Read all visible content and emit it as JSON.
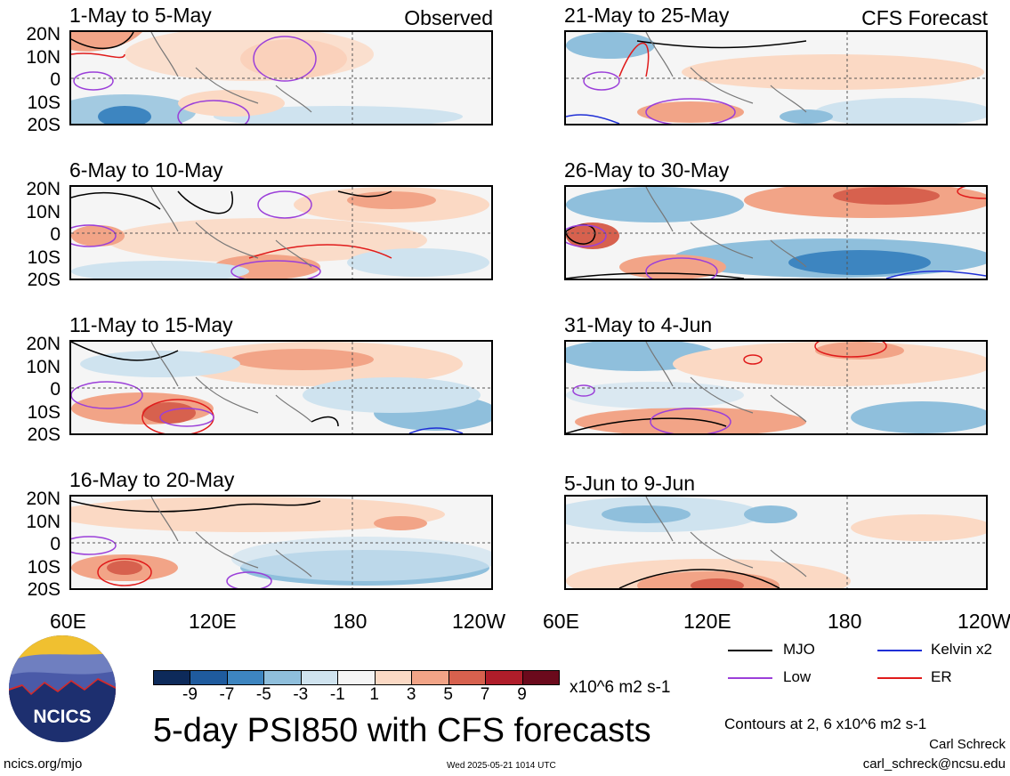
{
  "panels": [
    {
      "title": "1-May to 5-May",
      "tag": "Observed"
    },
    {
      "title": "6-May to 10-May",
      "tag": ""
    },
    {
      "title": "11-May to 15-May",
      "tag": ""
    },
    {
      "title": "16-May to 20-May",
      "tag": ""
    },
    {
      "title": "21-May to 25-May",
      "tag": "CFS Forecast"
    },
    {
      "title": "26-May to 30-May",
      "tag": ""
    },
    {
      "title": "31-May to 4-Jun",
      "tag": ""
    },
    {
      "title": "5-Jun to 9-Jun",
      "tag": ""
    }
  ],
  "lat_labels": [
    "20N",
    "10N",
    "0",
    "10S",
    "20S"
  ],
  "lon_labels": [
    "60E",
    "120E",
    "180",
    "120W"
  ],
  "colorbar": {
    "labels": [
      "-9",
      "-7",
      "-5",
      "-3",
      "-1",
      "1",
      "3",
      "5",
      "7",
      "9"
    ],
    "colors": [
      "#0d2a5a",
      "#1f5b9e",
      "#3d85c0",
      "#8fbfdc",
      "#cfe3ef",
      "#f5f5f5",
      "#fbd9c4",
      "#f2a487",
      "#d7614e",
      "#b01d2a",
      "#6b0a1c"
    ],
    "units": "x10^6 m2 s-1"
  },
  "legend": [
    {
      "label": "MJO",
      "color": "#000000"
    },
    {
      "label": "Kelvin x2",
      "color": "#1f2fd6"
    },
    {
      "label": "Low",
      "color": "#9b3fd9"
    },
    {
      "label": "ER",
      "color": "#e01b1b"
    }
  ],
  "main_title": "5-day PSI850 with CFS forecasts",
  "contours_note": "Contours at 2, 6 x10^6 m2 s-1",
  "author": "Carl Schreck",
  "email": "carl_schreck@ncsu.edu",
  "website": "ncics.org/mjo",
  "timestamp": "Wed 2025-05-21 1014 UTC",
  "logo_text": "NCICS"
}
